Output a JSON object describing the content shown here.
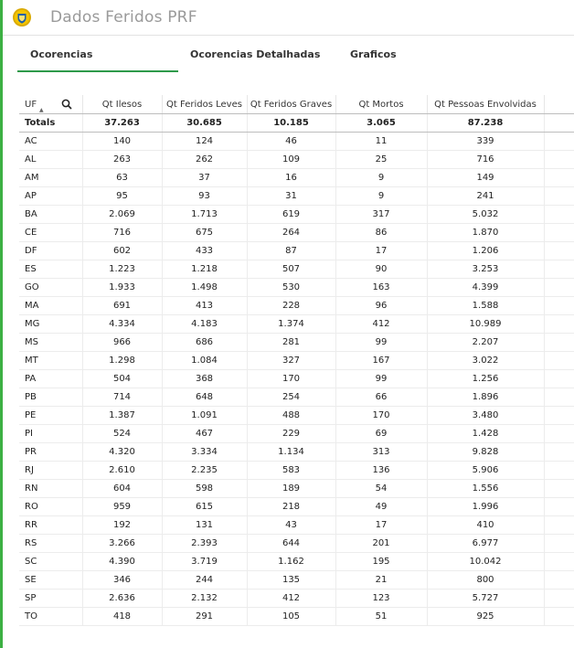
{
  "app": {
    "title": "Dados Feridos PRF"
  },
  "tabs": [
    {
      "label": "Ocorencias"
    },
    {
      "label": "Ocorencias Detalhadas"
    },
    {
      "label": "Graficos"
    }
  ],
  "table": {
    "columns": [
      "UF",
      "Qt Ilesos",
      "Qt Feridos Leves",
      "Qt Feridos Graves",
      "Qt Mortos",
      "Qt Pessoas Envolvidas"
    ],
    "totals": [
      "Totals",
      "37.263",
      "30.685",
      "10.185",
      "3.065",
      "87.238"
    ],
    "rows": [
      [
        "AC",
        "140",
        "124",
        "46",
        "11",
        "339"
      ],
      [
        "AL",
        "263",
        "262",
        "109",
        "25",
        "716"
      ],
      [
        "AM",
        "63",
        "37",
        "16",
        "9",
        "149"
      ],
      [
        "AP",
        "95",
        "93",
        "31",
        "9",
        "241"
      ],
      [
        "BA",
        "2.069",
        "1.713",
        "619",
        "317",
        "5.032"
      ],
      [
        "CE",
        "716",
        "675",
        "264",
        "86",
        "1.870"
      ],
      [
        "DF",
        "602",
        "433",
        "87",
        "17",
        "1.206"
      ],
      [
        "ES",
        "1.223",
        "1.218",
        "507",
        "90",
        "3.253"
      ],
      [
        "GO",
        "1.933",
        "1.498",
        "530",
        "163",
        "4.399"
      ],
      [
        "MA",
        "691",
        "413",
        "228",
        "96",
        "1.588"
      ],
      [
        "MG",
        "4.334",
        "4.183",
        "1.374",
        "412",
        "10.989"
      ],
      [
        "MS",
        "966",
        "686",
        "281",
        "99",
        "2.207"
      ],
      [
        "MT",
        "1.298",
        "1.084",
        "327",
        "167",
        "3.022"
      ],
      [
        "PA",
        "504",
        "368",
        "170",
        "99",
        "1.256"
      ],
      [
        "PB",
        "714",
        "648",
        "254",
        "66",
        "1.896"
      ],
      [
        "PE",
        "1.387",
        "1.091",
        "488",
        "170",
        "3.480"
      ],
      [
        "PI",
        "524",
        "467",
        "229",
        "69",
        "1.428"
      ],
      [
        "PR",
        "4.320",
        "3.334",
        "1.134",
        "313",
        "9.828"
      ],
      [
        "RJ",
        "2.610",
        "2.235",
        "583",
        "136",
        "5.906"
      ],
      [
        "RN",
        "604",
        "598",
        "189",
        "54",
        "1.556"
      ],
      [
        "RO",
        "959",
        "615",
        "218",
        "49",
        "1.996"
      ],
      [
        "RR",
        "192",
        "131",
        "43",
        "17",
        "410"
      ],
      [
        "RS",
        "3.266",
        "2.393",
        "644",
        "201",
        "6.977"
      ],
      [
        "SC",
        "4.390",
        "3.719",
        "1.162",
        "195",
        "10.042"
      ],
      [
        "SE",
        "346",
        "244",
        "135",
        "21",
        "800"
      ],
      [
        "SP",
        "2.636",
        "2.132",
        "412",
        "123",
        "5.727"
      ],
      [
        "TO",
        "418",
        "291",
        "105",
        "51",
        "925"
      ]
    ]
  },
  "colors": {
    "accent": "#2e9a4a",
    "left_border": "#3cb043",
    "title": "#9a9a9a",
    "logo_gold": "#e0b400",
    "logo_shield": "#f3c900"
  },
  "icons": {
    "logo": "prf-badge-icon",
    "search": "search-icon",
    "sort": "sort-asc-icon"
  }
}
